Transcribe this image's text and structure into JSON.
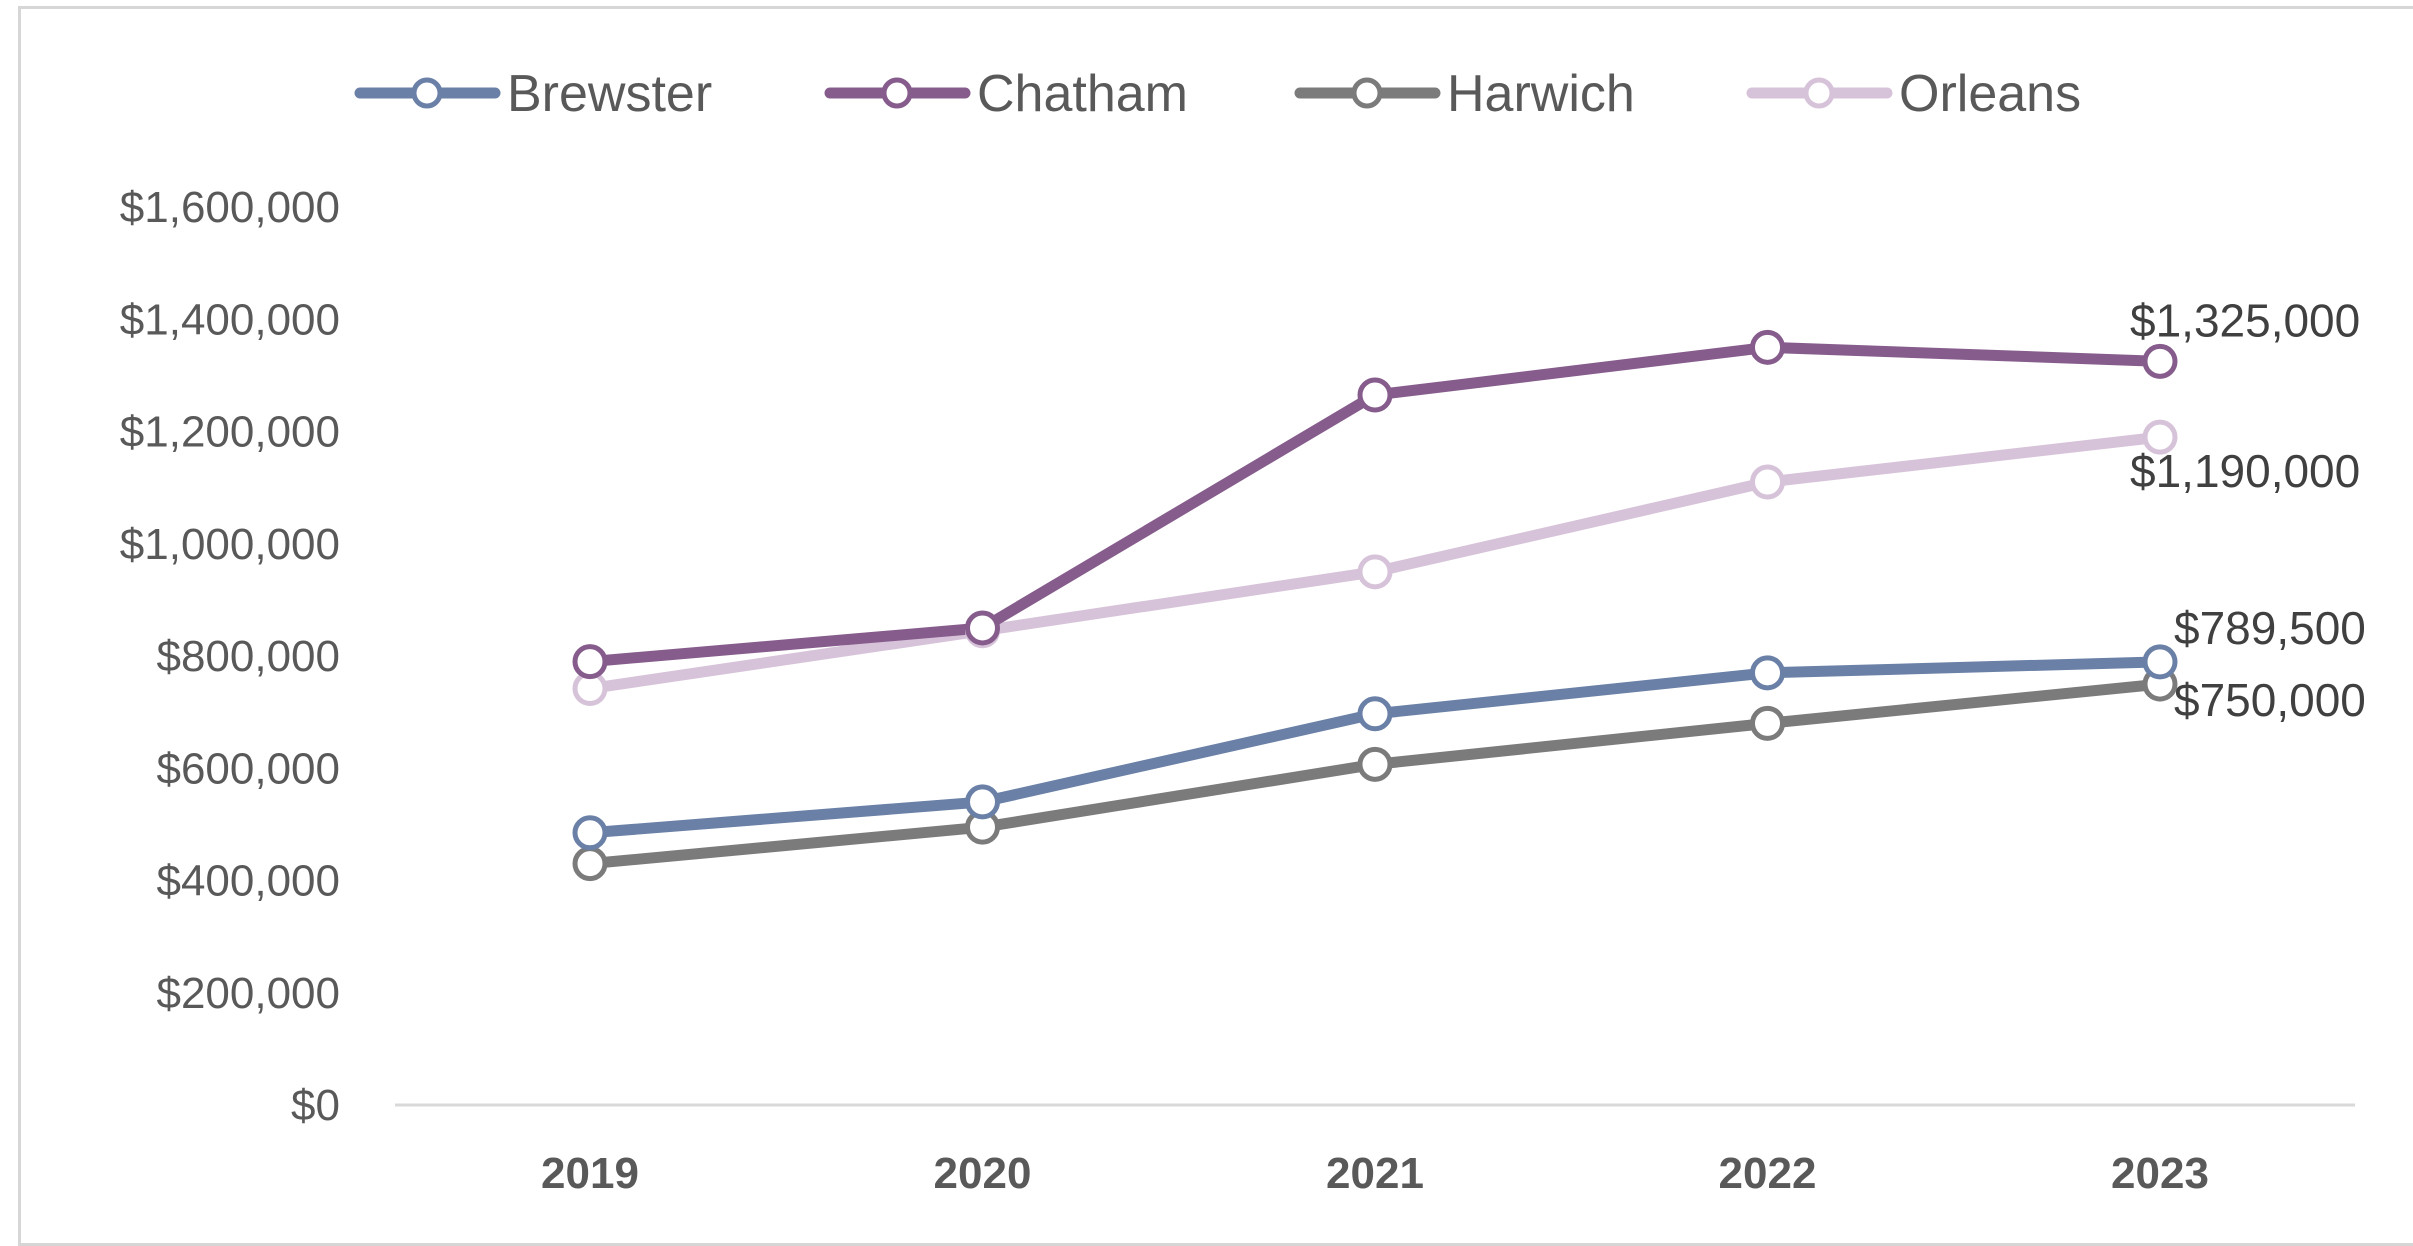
{
  "chart_data": {
    "type": "line",
    "title": "",
    "xlabel": "",
    "ylabel": "",
    "categories": [
      "2019",
      "2020",
      "2021",
      "2022",
      "2023"
    ],
    "y_ticks": [
      "$0",
      "$200,000",
      "$400,000",
      "$600,000",
      "$800,000",
      "$1,000,000",
      "$1,200,000",
      "$1,400,000",
      "$1,600,000"
    ],
    "ylim": [
      0,
      1600000
    ],
    "grid": false,
    "legend_position": "top",
    "series": [
      {
        "name": "Brewster",
        "color": "#6a80a6",
        "values": [
          485000,
          540000,
          697000,
          770000,
          789500
        ]
      },
      {
        "name": "Chatham",
        "color": "#865c8c",
        "values": [
          790000,
          850000,
          1265000,
          1350000,
          1325000
        ]
      },
      {
        "name": "Harwich",
        "color": "#7b7b7b",
        "values": [
          430000,
          495000,
          607000,
          680000,
          750000
        ]
      },
      {
        "name": "Orleans",
        "color": "#d7c3d9",
        "values": [
          742000,
          845000,
          950000,
          1110000,
          1190000
        ]
      }
    ],
    "data_labels": [
      {
        "series": "Chatham",
        "category": "2023",
        "text": "$1,325,000"
      },
      {
        "series": "Orleans",
        "category": "2023",
        "text": "$1,190,000"
      },
      {
        "series": "Brewster",
        "category": "2023",
        "text": "$789,500"
      },
      {
        "series": "Harwich",
        "category": "2023",
        "text": "$750,000"
      }
    ]
  }
}
